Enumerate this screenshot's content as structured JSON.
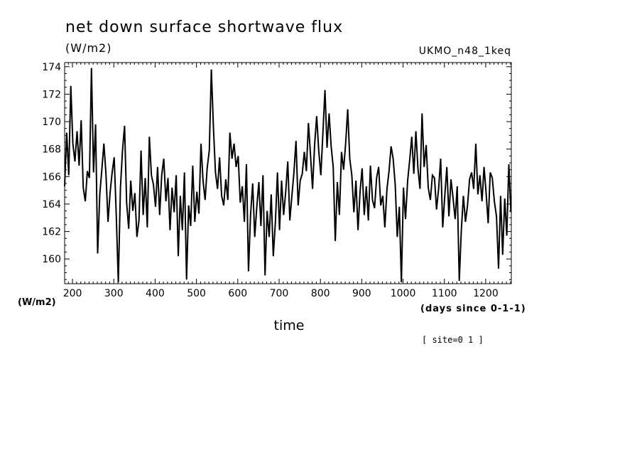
{
  "chart_data": {
    "type": "line",
    "title": "net down surface shortwave flux",
    "units_top": "(W/m2)",
    "model_label": "UKMO_n48_1keq",
    "ylabel": "(W/m2)",
    "xlabel": "time",
    "x_unit_label": "(days since 0-1-1)",
    "site_label": "[ site=0 1 ]",
    "xlim": [
      181,
      1262
    ],
    "ylim": [
      158.2,
      174.3
    ],
    "grid": false,
    "x_ticks": [
      200,
      300,
      400,
      500,
      600,
      700,
      800,
      900,
      1000,
      1100,
      1200
    ],
    "x_tick_labels": [
      "200",
      "300",
      "400",
      "500",
      "600",
      "700",
      "800",
      "900",
      "1000",
      "1100",
      "1200"
    ],
    "y_ticks": [
      160,
      162,
      164,
      166,
      168,
      170,
      172,
      174
    ],
    "y_tick_labels": [
      "160",
      "162",
      "164",
      "166",
      "168",
      "170",
      "172",
      "174"
    ],
    "series": [
      {
        "x": [
          181,
          186,
          191,
          196,
          201,
          206,
          211,
          216,
          221,
          226,
          231,
          236,
          241,
          246,
          251,
          256,
          261,
          266,
          271,
          276,
          281,
          286,
          291,
          296,
          301,
          306,
          311,
          316,
          321,
          326,
          331,
          336,
          341,
          346,
          351,
          356,
          361,
          366,
          371,
          376,
          381,
          386,
          391,
          396,
          401,
          406,
          411,
          416,
          421,
          426,
          431,
          436,
          441,
          446,
          451,
          456,
          461,
          466,
          471,
          476,
          481,
          486,
          491,
          496,
          501,
          506,
          511,
          516,
          521,
          526,
          531,
          536,
          541,
          546,
          551,
          556,
          561,
          566,
          571,
          576,
          581,
          586,
          591,
          596,
          601,
          606,
          611,
          616,
          621,
          626,
          631,
          636,
          641,
          646,
          651,
          656,
          661,
          666,
          671,
          676,
          681,
          686,
          691,
          696,
          701,
          706,
          711,
          716,
          721,
          726,
          731,
          736,
          741,
          746,
          751,
          756,
          761,
          766,
          771,
          776,
          781,
          786,
          791,
          796,
          801,
          806,
          811,
          816,
          821,
          826,
          831,
          836,
          841,
          846,
          851,
          856,
          861,
          866,
          871,
          876,
          881,
          886,
          891,
          896,
          901,
          906,
          911,
          916,
          921,
          926,
          931,
          936,
          941,
          946,
          951,
          956,
          961,
          966,
          971,
          976,
          981,
          986,
          991,
          996,
          1001,
          1006,
          1011,
          1016,
          1021,
          1026,
          1031,
          1036,
          1041,
          1046,
          1051,
          1056,
          1061,
          1066,
          1071,
          1076,
          1081,
          1086,
          1091,
          1096,
          1101,
          1106,
          1111,
          1116,
          1121,
          1126,
          1131,
          1136,
          1141,
          1146,
          1151,
          1156,
          1161,
          1166,
          1171,
          1176,
          1181,
          1186,
          1191,
          1196,
          1201,
          1206,
          1211,
          1216,
          1221,
          1226,
          1231,
          1236,
          1241,
          1246,
          1251,
          1256,
          1261
        ],
        "y": [
          165.3,
          169.2,
          166.1,
          172.6,
          168.4,
          167.1,
          169.3,
          166.8,
          170.1,
          165.2,
          164.2,
          166.4,
          165.9,
          173.9,
          166.3,
          169.8,
          160.4,
          164.7,
          166.5,
          168.4,
          166.2,
          162.7,
          164.8,
          166.3,
          167.4,
          163.2,
          158.3,
          165.2,
          167.9,
          169.7,
          164.1,
          162.2,
          165.7,
          163.5,
          164.8,
          161.6,
          162.8,
          167.9,
          163.2,
          165.9,
          162.3,
          168.9,
          166.1,
          165.4,
          163.8,
          166.7,
          163.2,
          166.1,
          167.3,
          164.2,
          165.9,
          162.1,
          165.2,
          163.4,
          166.1,
          160.2,
          164.6,
          162.1,
          166.3,
          158.5,
          163.9,
          162.4,
          166.8,
          162.7,
          164.9,
          163.3,
          168.4,
          165.7,
          164.3,
          166.6,
          167.9,
          173.8,
          169.6,
          166.3,
          165.1,
          167.4,
          164.6,
          163.9,
          165.8,
          164.3,
          169.2,
          167.3,
          168.4,
          166.7,
          167.5,
          164.1,
          165.3,
          162.7,
          166.9,
          159.1,
          163.2,
          165.5,
          161.6,
          163.8,
          165.6,
          162.4,
          166.1,
          158.8,
          163.5,
          161.6,
          164.7,
          160.2,
          162.7,
          166.3,
          162.1,
          165.7,
          163.2,
          164.9,
          167.1,
          162.8,
          164.6,
          166.3,
          168.6,
          163.9,
          165.7,
          166.2,
          167.8,
          166.4,
          169.9,
          167.6,
          165.1,
          168.3,
          170.4,
          167.9,
          166.1,
          169.2,
          172.3,
          168.1,
          170.6,
          168.2,
          166.7,
          161.3,
          165.6,
          163.2,
          167.8,
          166.5,
          168.4,
          170.9,
          167.3,
          166.1,
          163.4,
          165.7,
          162.1,
          164.9,
          166.6,
          163.2,
          165.3,
          162.8,
          166.8,
          164.3,
          163.7,
          165.9,
          166.7,
          163.9,
          164.6,
          162.3,
          165.1,
          166.4,
          168.2,
          167.3,
          165.4,
          161.6,
          163.8,
          158.3,
          165.2,
          162.9,
          165.7,
          167.2,
          168.9,
          166.2,
          169.3,
          166.6,
          165.1,
          170.6,
          166.7,
          168.3,
          165.2,
          164.3,
          166.1,
          165.9,
          163.6,
          165.1,
          167.3,
          162.3,
          164.6,
          166.7,
          163.1,
          165.8,
          164.4,
          162.9,
          165.3,
          158.4,
          162.1,
          164.6,
          162.7,
          163.9,
          165.8,
          166.3,
          165.1,
          168.4,
          164.7,
          166.1,
          164.2,
          166.7,
          164.8,
          162.6,
          166.3,
          165.9,
          164.2,
          163.1,
          159.3,
          164.6,
          160.3,
          164.4,
          161.7,
          166.9,
          163.4
        ]
      }
    ]
  }
}
